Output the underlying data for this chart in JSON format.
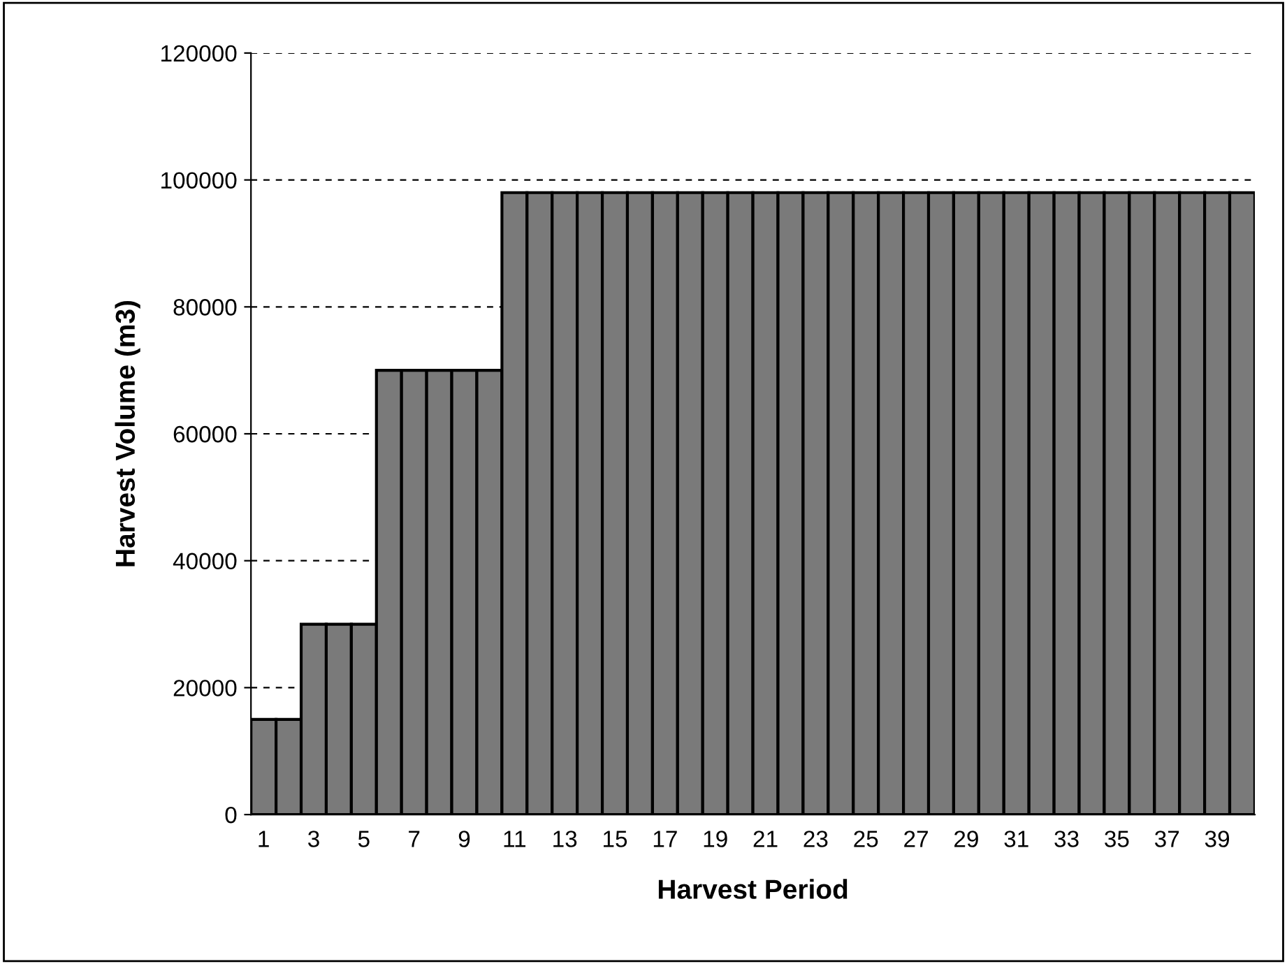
{
  "chart_data": {
    "type": "bar",
    "xlabel": "Harvest Period",
    "ylabel": "Harvest Volume (m3)",
    "categories": [
      "1",
      null,
      "3",
      null,
      "5",
      null,
      "7",
      null,
      "9",
      null,
      "11",
      null,
      "13",
      null,
      "15",
      null,
      "17",
      null,
      "19",
      null,
      "21",
      null,
      "23",
      null,
      "25",
      null,
      "27",
      null,
      "29",
      null,
      "31",
      null,
      "33",
      null,
      "35",
      null,
      "37",
      null,
      "39",
      null
    ],
    "values": [
      15000,
      15000,
      30000,
      30000,
      30000,
      70000,
      70000,
      70000,
      70000,
      70000,
      98000,
      98000,
      98000,
      98000,
      98000,
      98000,
      98000,
      98000,
      98000,
      98000,
      98000,
      98000,
      98000,
      98000,
      98000,
      98000,
      98000,
      98000,
      98000,
      98000,
      98000,
      98000,
      98000,
      98000,
      98000,
      98000,
      98000,
      98000,
      98000,
      98000
    ],
    "color": "#7a7a7a",
    "ylim": [
      0,
      120000
    ],
    "yticks": [
      0,
      20000,
      40000,
      60000,
      80000,
      100000,
      120000
    ],
    "grid": "y",
    "legend": false
  }
}
